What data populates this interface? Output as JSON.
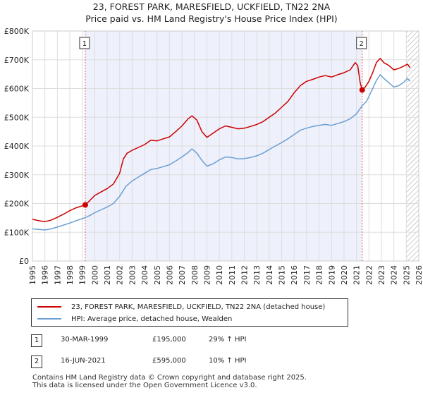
{
  "title_line1": "23, FOREST PARK, MARESFIELD, UCKFIELD, TN22 2NA",
  "title_line2": "Price paid vs. HM Land Registry's House Price Index (HPI)",
  "chart_data": {
    "type": "line",
    "title": "23, FOREST PARK, MARESFIELD, UCKFIELD, TN22 2NA — Price paid vs. HM Land Registry's House Price Index (HPI)",
    "xlabel": "",
    "ylabel": "",
    "xlim": [
      1995,
      2026
    ],
    "ylim": [
      0,
      800000
    ],
    "x_ticks": [
      1995,
      1996,
      1997,
      1998,
      1999,
      2000,
      2001,
      2002,
      2003,
      2004,
      2005,
      2006,
      2007,
      2008,
      2009,
      2010,
      2011,
      2012,
      2013,
      2014,
      2015,
      2016,
      2017,
      2018,
      2019,
      2020,
      2021,
      2022,
      2023,
      2024,
      2025,
      2026
    ],
    "y_ticks": [
      0,
      100000,
      200000,
      300000,
      400000,
      500000,
      600000,
      700000,
      800000
    ],
    "y_tick_labels": [
      "£0",
      "£100K",
      "£200K",
      "£300K",
      "£400K",
      "£500K",
      "£600K",
      "£700K",
      "£800K"
    ],
    "grid": true,
    "shaded_region": [
      1999.24,
      2021.46
    ],
    "hatched_from": 2025.0,
    "series": [
      {
        "name": "23, FOREST PARK, MARESFIELD, UCKFIELD, TN22 2NA (detached house)",
        "color": "#cc0000",
        "points": [
          [
            1995.0,
            145000
          ],
          [
            1995.5,
            140000
          ],
          [
            1996.0,
            137000
          ],
          [
            1996.5,
            142000
          ],
          [
            1997.0,
            152000
          ],
          [
            1997.5,
            163000
          ],
          [
            1998.0,
            175000
          ],
          [
            1998.5,
            185000
          ],
          [
            1999.24,
            195000
          ],
          [
            1999.6,
            210000
          ],
          [
            2000.0,
            228000
          ],
          [
            2000.5,
            240000
          ],
          [
            2001.0,
            252000
          ],
          [
            2001.5,
            268000
          ],
          [
            2002.0,
            305000
          ],
          [
            2002.3,
            355000
          ],
          [
            2002.6,
            375000
          ],
          [
            2003.0,
            385000
          ],
          [
            2003.5,
            395000
          ],
          [
            2004.0,
            405000
          ],
          [
            2004.5,
            420000
          ],
          [
            2005.0,
            418000
          ],
          [
            2005.5,
            425000
          ],
          [
            2006.0,
            432000
          ],
          [
            2006.5,
            450000
          ],
          [
            2007.0,
            470000
          ],
          [
            2007.5,
            495000
          ],
          [
            2007.8,
            505000
          ],
          [
            2008.2,
            490000
          ],
          [
            2008.6,
            450000
          ],
          [
            2009.0,
            430000
          ],
          [
            2009.5,
            445000
          ],
          [
            2010.0,
            460000
          ],
          [
            2010.5,
            470000
          ],
          [
            2011.0,
            465000
          ],
          [
            2011.5,
            460000
          ],
          [
            2012.0,
            462000
          ],
          [
            2012.5,
            468000
          ],
          [
            2013.0,
            475000
          ],
          [
            2013.5,
            485000
          ],
          [
            2014.0,
            500000
          ],
          [
            2014.5,
            515000
          ],
          [
            2015.0,
            535000
          ],
          [
            2015.5,
            555000
          ],
          [
            2016.0,
            585000
          ],
          [
            2016.5,
            610000
          ],
          [
            2017.0,
            625000
          ],
          [
            2017.5,
            632000
          ],
          [
            2018.0,
            640000
          ],
          [
            2018.5,
            645000
          ],
          [
            2019.0,
            640000
          ],
          [
            2019.5,
            648000
          ],
          [
            2020.0,
            655000
          ],
          [
            2020.5,
            665000
          ],
          [
            2020.9,
            690000
          ],
          [
            2021.1,
            680000
          ],
          [
            2021.3,
            620000
          ],
          [
            2021.46,
            595000
          ],
          [
            2021.7,
            605000
          ],
          [
            2022.0,
            625000
          ],
          [
            2022.3,
            655000
          ],
          [
            2022.6,
            690000
          ],
          [
            2022.9,
            705000
          ],
          [
            2023.2,
            690000
          ],
          [
            2023.6,
            680000
          ],
          [
            2024.0,
            665000
          ],
          [
            2024.4,
            670000
          ],
          [
            2024.8,
            678000
          ],
          [
            2025.1,
            685000
          ],
          [
            2025.3,
            672000
          ]
        ]
      },
      {
        "name": "HPI: Average price, detached house, Wealden",
        "color": "#6a9fd4",
        "points": [
          [
            1995.0,
            112000
          ],
          [
            1995.5,
            110000
          ],
          [
            1996.0,
            108000
          ],
          [
            1996.5,
            112000
          ],
          [
            1997.0,
            118000
          ],
          [
            1997.5,
            125000
          ],
          [
            1998.0,
            132000
          ],
          [
            1998.5,
            140000
          ],
          [
            1999.24,
            151000
          ],
          [
            1999.6,
            158000
          ],
          [
            2000.0,
            168000
          ],
          [
            2000.5,
            178000
          ],
          [
            2001.0,
            188000
          ],
          [
            2001.5,
            200000
          ],
          [
            2002.0,
            225000
          ],
          [
            2002.5,
            260000
          ],
          [
            2003.0,
            278000
          ],
          [
            2003.5,
            292000
          ],
          [
            2004.0,
            305000
          ],
          [
            2004.5,
            318000
          ],
          [
            2005.0,
            322000
          ],
          [
            2005.5,
            328000
          ],
          [
            2006.0,
            335000
          ],
          [
            2006.5,
            348000
          ],
          [
            2007.0,
            362000
          ],
          [
            2007.5,
            378000
          ],
          [
            2007.8,
            390000
          ],
          [
            2008.2,
            375000
          ],
          [
            2008.6,
            350000
          ],
          [
            2009.0,
            330000
          ],
          [
            2009.5,
            338000
          ],
          [
            2010.0,
            352000
          ],
          [
            2010.5,
            362000
          ],
          [
            2011.0,
            360000
          ],
          [
            2011.5,
            355000
          ],
          [
            2012.0,
            356000
          ],
          [
            2012.5,
            360000
          ],
          [
            2013.0,
            366000
          ],
          [
            2013.5,
            375000
          ],
          [
            2014.0,
            388000
          ],
          [
            2014.5,
            400000
          ],
          [
            2015.0,
            412000
          ],
          [
            2015.5,
            425000
          ],
          [
            2016.0,
            440000
          ],
          [
            2016.5,
            455000
          ],
          [
            2017.0,
            462000
          ],
          [
            2017.5,
            468000
          ],
          [
            2018.0,
            472000
          ],
          [
            2018.5,
            475000
          ],
          [
            2019.0,
            472000
          ],
          [
            2019.5,
            478000
          ],
          [
            2020.0,
            485000
          ],
          [
            2020.5,
            495000
          ],
          [
            2021.0,
            512000
          ],
          [
            2021.46,
            540000
          ],
          [
            2021.8,
            555000
          ],
          [
            2022.2,
            590000
          ],
          [
            2022.6,
            628000
          ],
          [
            2022.9,
            648000
          ],
          [
            2023.2,
            635000
          ],
          [
            2023.6,
            620000
          ],
          [
            2024.0,
            605000
          ],
          [
            2024.4,
            610000
          ],
          [
            2024.8,
            622000
          ],
          [
            2025.1,
            635000
          ],
          [
            2025.3,
            625000
          ]
        ]
      }
    ],
    "annotations": [
      {
        "label": "1",
        "x": 1999.24,
        "y": 195000
      },
      {
        "label": "2",
        "x": 2021.46,
        "y": 595000
      }
    ]
  },
  "legend": {
    "series1_label": "23, FOREST PARK, MARESFIELD, UCKFIELD, TN22 2NA (detached house)",
    "series2_label": "HPI: Average price, detached house, Wealden"
  },
  "transactions": [
    {
      "num": "1",
      "date": "30-MAR-1999",
      "price": "£195,000",
      "hpi": "29% ↑ HPI"
    },
    {
      "num": "2",
      "date": "16-JUN-2021",
      "price": "£595,000",
      "hpi": "10% ↑ HPI"
    }
  ],
  "footer_line1": "Contains HM Land Registry data © Crown copyright and database right 2025.",
  "footer_line2": "This data is licensed under the Open Government Licence v3.0."
}
